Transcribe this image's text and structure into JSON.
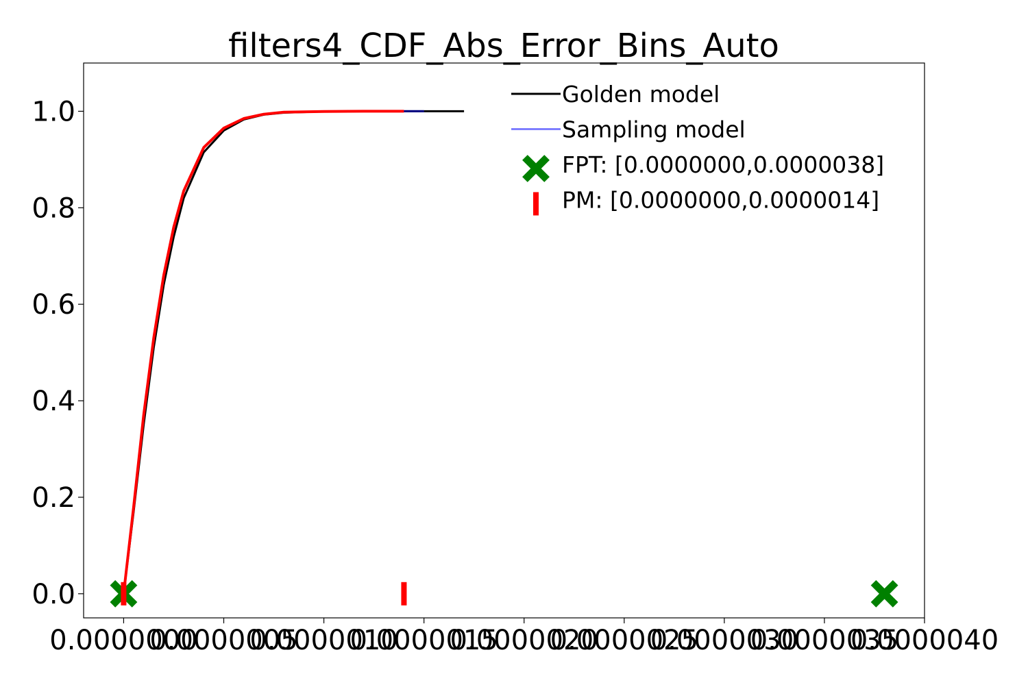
{
  "chart_data": {
    "type": "line",
    "title": "filters4_CDF_Abs_Error_Bins_Auto",
    "xlabel": "",
    "ylabel": "",
    "xlim": [
      -2e-07,
      4e-06
    ],
    "ylim": [
      -0.05,
      1.1
    ],
    "x_ticks": [
      {
        "value": 0.0,
        "label": "0.0000000"
      },
      {
        "value": 5e-07,
        "label": "0.0000005"
      },
      {
        "value": 1e-06,
        "label": "0.0000010"
      },
      {
        "value": 1.5e-06,
        "label": "0.0000015"
      },
      {
        "value": 2e-06,
        "label": "0.0000020"
      },
      {
        "value": 2.5e-06,
        "label": "0.0000025"
      },
      {
        "value": 3e-06,
        "label": "0.0000030"
      },
      {
        "value": 3.5e-06,
        "label": "0.0000035"
      },
      {
        "value": 4e-06,
        "label": "0.0000040"
      }
    ],
    "y_ticks": [
      {
        "value": 0.0,
        "label": "0.0"
      },
      {
        "value": 0.2,
        "label": "0.2"
      },
      {
        "value": 0.4,
        "label": "0.4"
      },
      {
        "value": 0.6,
        "label": "0.6"
      },
      {
        "value": 0.8,
        "label": "0.8"
      },
      {
        "value": 1.0,
        "label": "1.0"
      }
    ],
    "grid": false,
    "legend_position": "top-right",
    "series": [
      {
        "name": "Golden model",
        "color": "#000000",
        "x": [
          0.0,
          5e-08,
          1e-07,
          1.5e-07,
          2e-07,
          2.5e-07,
          3e-07,
          4e-07,
          5e-07,
          6e-07,
          7e-07,
          8e-07,
          1e-06,
          1.2e-06,
          1.4e-06,
          1.5e-06,
          1.7e-06
        ],
        "y": [
          0.0,
          0.17,
          0.35,
          0.51,
          0.64,
          0.74,
          0.82,
          0.915,
          0.96,
          0.983,
          0.993,
          0.997,
          0.9995,
          1.0,
          1.0,
          1.0,
          1.0
        ]
      },
      {
        "name": "Sampling model",
        "color": "#7f7fff",
        "x": [
          0.0,
          5e-08,
          1e-07,
          1.5e-07,
          2e-07,
          2.5e-07,
          3e-07,
          4e-07,
          5e-07,
          6e-07,
          7e-07,
          8e-07,
          1e-06,
          1.2e-06,
          1.4e-06,
          1.5e-06
        ],
        "y": [
          0.0,
          0.18,
          0.37,
          0.53,
          0.66,
          0.76,
          0.835,
          0.925,
          0.965,
          0.985,
          0.994,
          0.998,
          0.9995,
          1.0,
          1.0,
          1.0
        ]
      },
      {
        "name": "",
        "color": "#ff0000",
        "x": [
          0.0,
          5e-08,
          1e-07,
          1.5e-07,
          2e-07,
          2.5e-07,
          3e-07,
          4e-07,
          5e-07,
          6e-07,
          7e-07,
          8e-07,
          1e-06,
          1.2e-06,
          1.4e-06
        ],
        "y": [
          0.0,
          0.18,
          0.37,
          0.53,
          0.66,
          0.76,
          0.835,
          0.925,
          0.965,
          0.985,
          0.994,
          0.998,
          0.9995,
          1.0,
          1.0
        ]
      }
    ],
    "markers": [
      {
        "legend": "FPT: [0.0000000,0.0000038]",
        "shape": "X",
        "color": "#008000",
        "points": [
          [
            0.0,
            0.0
          ],
          [
            3.8e-06,
            0.0
          ]
        ]
      },
      {
        "legend": "PM: [0.0000000,0.0000014]",
        "shape": "|",
        "color": "#ff0000",
        "points": [
          [
            0.0,
            0.0
          ],
          [
            1.4e-06,
            0.0
          ]
        ]
      }
    ],
    "legend": [
      {
        "label": "Golden model",
        "kind": "line",
        "color": "#000000"
      },
      {
        "label": "Sampling model",
        "kind": "line",
        "color": "#7f7fff"
      },
      {
        "label": "FPT: [0.0000000,0.0000038]",
        "kind": "X",
        "color": "#008000"
      },
      {
        "label": "PM: [0.0000000,0.0000014]",
        "kind": "|",
        "color": "#ff0000"
      }
    ]
  }
}
